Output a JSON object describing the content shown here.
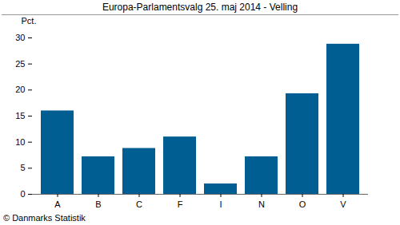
{
  "chart_data": {
    "type": "bar",
    "title": "Europa-Parlamentsvalg 25. maj 2014 - Velling",
    "y_label": "Pct.",
    "categories": [
      "A",
      "B",
      "C",
      "F",
      "I",
      "N",
      "O",
      "V"
    ],
    "values": [
      16,
      7.2,
      8.8,
      11,
      2,
      7.2,
      19.3,
      28.8
    ],
    "color": "#005e93",
    "ylim": [
      0,
      30
    ],
    "yticks": [
      0,
      5,
      10,
      15,
      20,
      25,
      30
    ],
    "grid": false,
    "caption": "© Danmarks Statistik"
  }
}
